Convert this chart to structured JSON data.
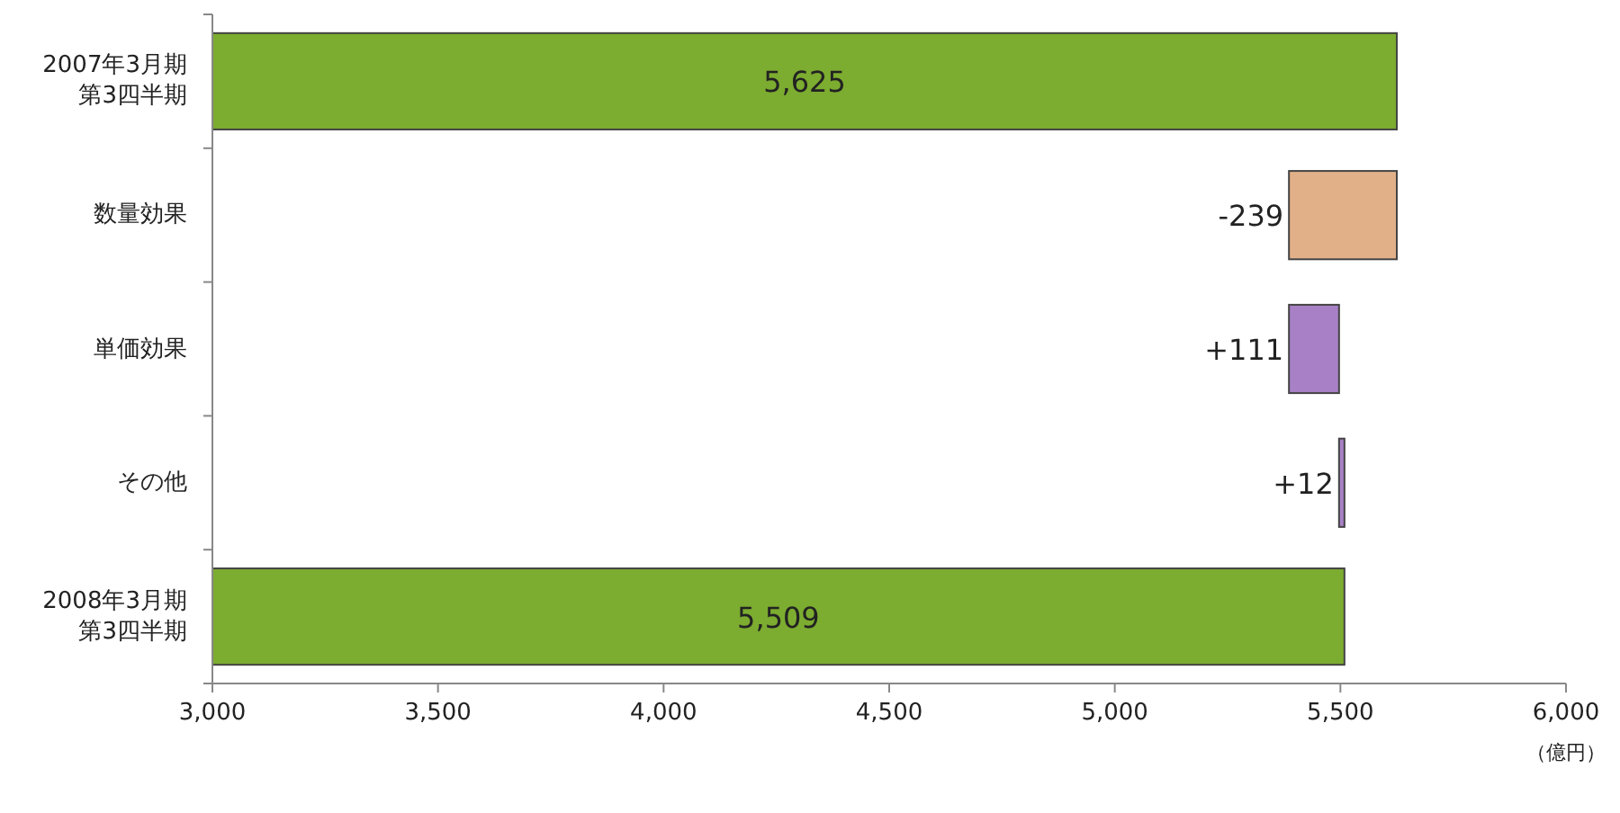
{
  "chart_data": {
    "type": "bar",
    "orientation": "horizontal",
    "categories": [
      "2007年3月期第3四半期",
      "数量効果",
      "単価効果",
      "その他",
      "2008年3月期第3四半期"
    ],
    "values": [
      5625,
      -239,
      111,
      12,
      5509
    ],
    "base": [
      null,
      5625,
      5386,
      5497,
      null
    ],
    "colors": [
      "#7cac30",
      "#e2b088",
      "#a880c6",
      "#a880c6",
      "#7cac30"
    ],
    "value_labels": [
      "5,625",
      "-239",
      "+111",
      "+12",
      "5,509"
    ],
    "xlim": [
      3000,
      6000
    ],
    "xticks": [
      {
        "value": 3000,
        "label": "3,000"
      },
      {
        "value": 3500,
        "label": "3,500"
      },
      {
        "value": 4000,
        "label": "4,000"
      },
      {
        "value": 4500,
        "label": "4,500"
      },
      {
        "value": 5000,
        "label": "5,000"
      },
      {
        "value": 5500,
        "label": "5,500"
      },
      {
        "value": 6000,
        "label": "6,000"
      }
    ],
    "annotations": [
      "（億円）"
    ]
  }
}
